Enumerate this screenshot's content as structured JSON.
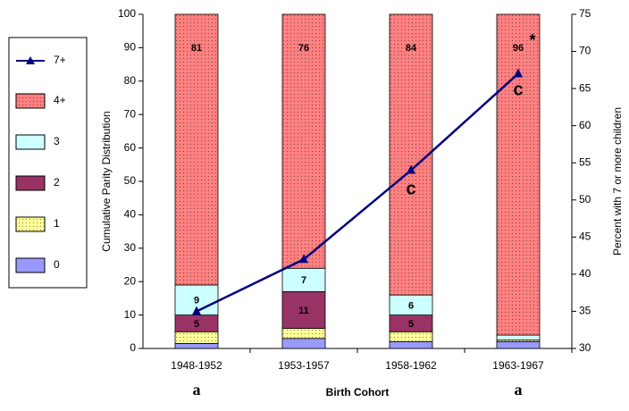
{
  "chart_data": {
    "type": "bar",
    "categories": [
      "1948-1952",
      "1953-1957",
      "1958-1962",
      "1963-1967"
    ],
    "xlabel": "Birth Cohort",
    "ylabel": "Cumulative Parity Distribution",
    "y2label": "Percent with 7 or more children",
    "stacked": true,
    "ylim": [
      0,
      100
    ],
    "yticks": [
      0,
      10,
      20,
      30,
      40,
      50,
      60,
      70,
      80,
      90,
      100
    ],
    "y2lim": [
      30,
      75
    ],
    "y2ticks": [
      30,
      35,
      40,
      45,
      50,
      55,
      60,
      65,
      70,
      75
    ],
    "series": [
      {
        "name": "0",
        "color": "#9999ff",
        "values": [
          1.5,
          3,
          2,
          2
        ]
      },
      {
        "name": "1",
        "color": "#ffff99",
        "pattern": "dots",
        "values": [
          3.5,
          3,
          3,
          0.5
        ]
      },
      {
        "name": "2",
        "color": "#993366",
        "values": [
          5,
          11,
          5,
          0
        ],
        "value_labels": [
          "5",
          "11",
          "5",
          null
        ]
      },
      {
        "name": "3",
        "color": "#ccffff",
        "values": [
          9,
          7,
          6,
          1.5
        ],
        "value_labels": [
          "9",
          "7",
          "6",
          null
        ]
      },
      {
        "name": "4+",
        "color": "#ff8080",
        "pattern": "dots",
        "values": [
          81,
          76,
          84,
          96
        ],
        "value_labels": [
          "81",
          "76",
          "84",
          "96"
        ]
      },
      {
        "name": "7+",
        "type": "line",
        "axis": "y2",
        "color": "#000080",
        "values": [
          35,
          42,
          54,
          67
        ]
      }
    ],
    "annotations": [
      "c",
      "c",
      "*",
      "a",
      "a"
    ],
    "legend": "left"
  }
}
